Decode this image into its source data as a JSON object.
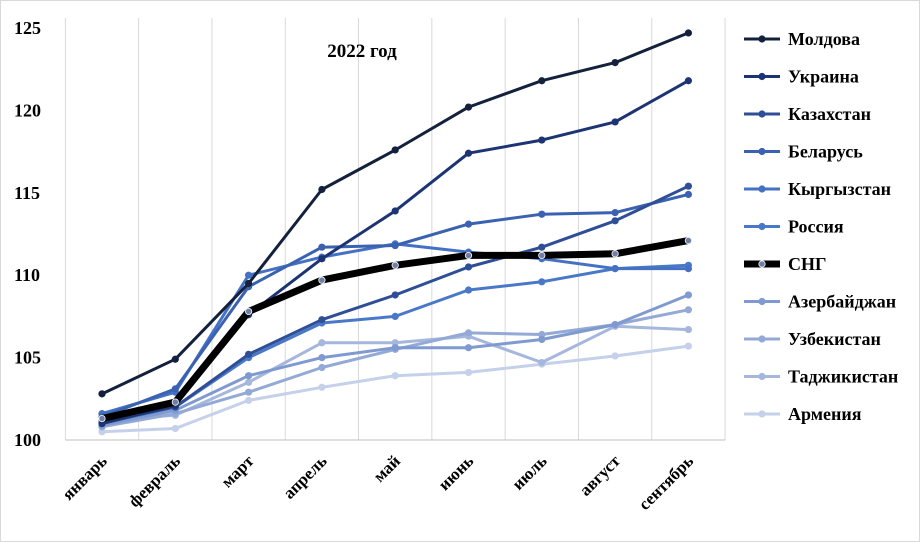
{
  "chart_data": {
    "type": "line",
    "title": "2022 год",
    "xlabel": "",
    "ylabel": "",
    "ylim": [
      100,
      125
    ],
    "yticks": [
      100,
      105,
      110,
      115,
      120,
      125
    ],
    "grid": "vertical",
    "legend_position": "right",
    "categories": [
      "январь",
      "февраль",
      "март",
      "апрель",
      "май",
      "июнь",
      "июль",
      "август",
      "сентябрь"
    ],
    "series": [
      {
        "name": "Молдова",
        "color": "#14213d",
        "values": [
          102.8,
          104.9,
          109.5,
          115.2,
          117.6,
          120.2,
          121.8,
          122.9,
          124.7
        ]
      },
      {
        "name": "Украина",
        "color": "#1c3473",
        "values": [
          101.0,
          102.1,
          107.6,
          111.0,
          113.9,
          117.4,
          118.2,
          119.3,
          121.8
        ]
      },
      {
        "name": "Казахстан",
        "color": "#2e4e96",
        "values": [
          101.1,
          102.0,
          105.2,
          107.3,
          108.8,
          110.5,
          111.7,
          113.3,
          115.4
        ]
      },
      {
        "name": "Беларусь",
        "color": "#3a62b0",
        "values": [
          101.4,
          103.1,
          109.3,
          111.7,
          111.8,
          113.1,
          113.7,
          113.8,
          114.9
        ]
      },
      {
        "name": "Кыргызстан",
        "color": "#4471c4",
        "values": [
          101.6,
          102.9,
          110.0,
          111.1,
          111.9,
          111.4,
          111.0,
          110.4,
          110.4
        ]
      },
      {
        "name": "Россия",
        "color": "#4a78c8",
        "values": [
          101.0,
          102.0,
          105.0,
          107.1,
          107.5,
          109.1,
          109.6,
          110.4,
          110.6
        ]
      },
      {
        "name": "СНГ",
        "color": "#000000",
        "values": [
          101.3,
          102.3,
          107.8,
          109.7,
          110.6,
          111.2,
          111.2,
          111.3,
          112.1
        ]
      },
      {
        "name": "Азербайджан",
        "color": "#7f9ad0",
        "values": [
          100.9,
          101.8,
          103.9,
          105.0,
          105.6,
          105.6,
          106.1,
          107.0,
          108.8
        ]
      },
      {
        "name": "Узбекистан",
        "color": "#93a9d6",
        "values": [
          100.8,
          101.6,
          102.9,
          104.4,
          105.5,
          106.5,
          106.4,
          107.0,
          107.9
        ]
      },
      {
        "name": "Таджикистан",
        "color": "#a6b7dd",
        "values": [
          101.2,
          101.5,
          103.5,
          105.9,
          105.9,
          106.3,
          104.7,
          106.9,
          106.7
        ]
      },
      {
        "name": "Армения",
        "color": "#c5d0ea",
        "values": [
          100.5,
          100.7,
          102.4,
          103.2,
          103.9,
          104.1,
          104.6,
          105.1,
          105.7
        ]
      }
    ]
  }
}
